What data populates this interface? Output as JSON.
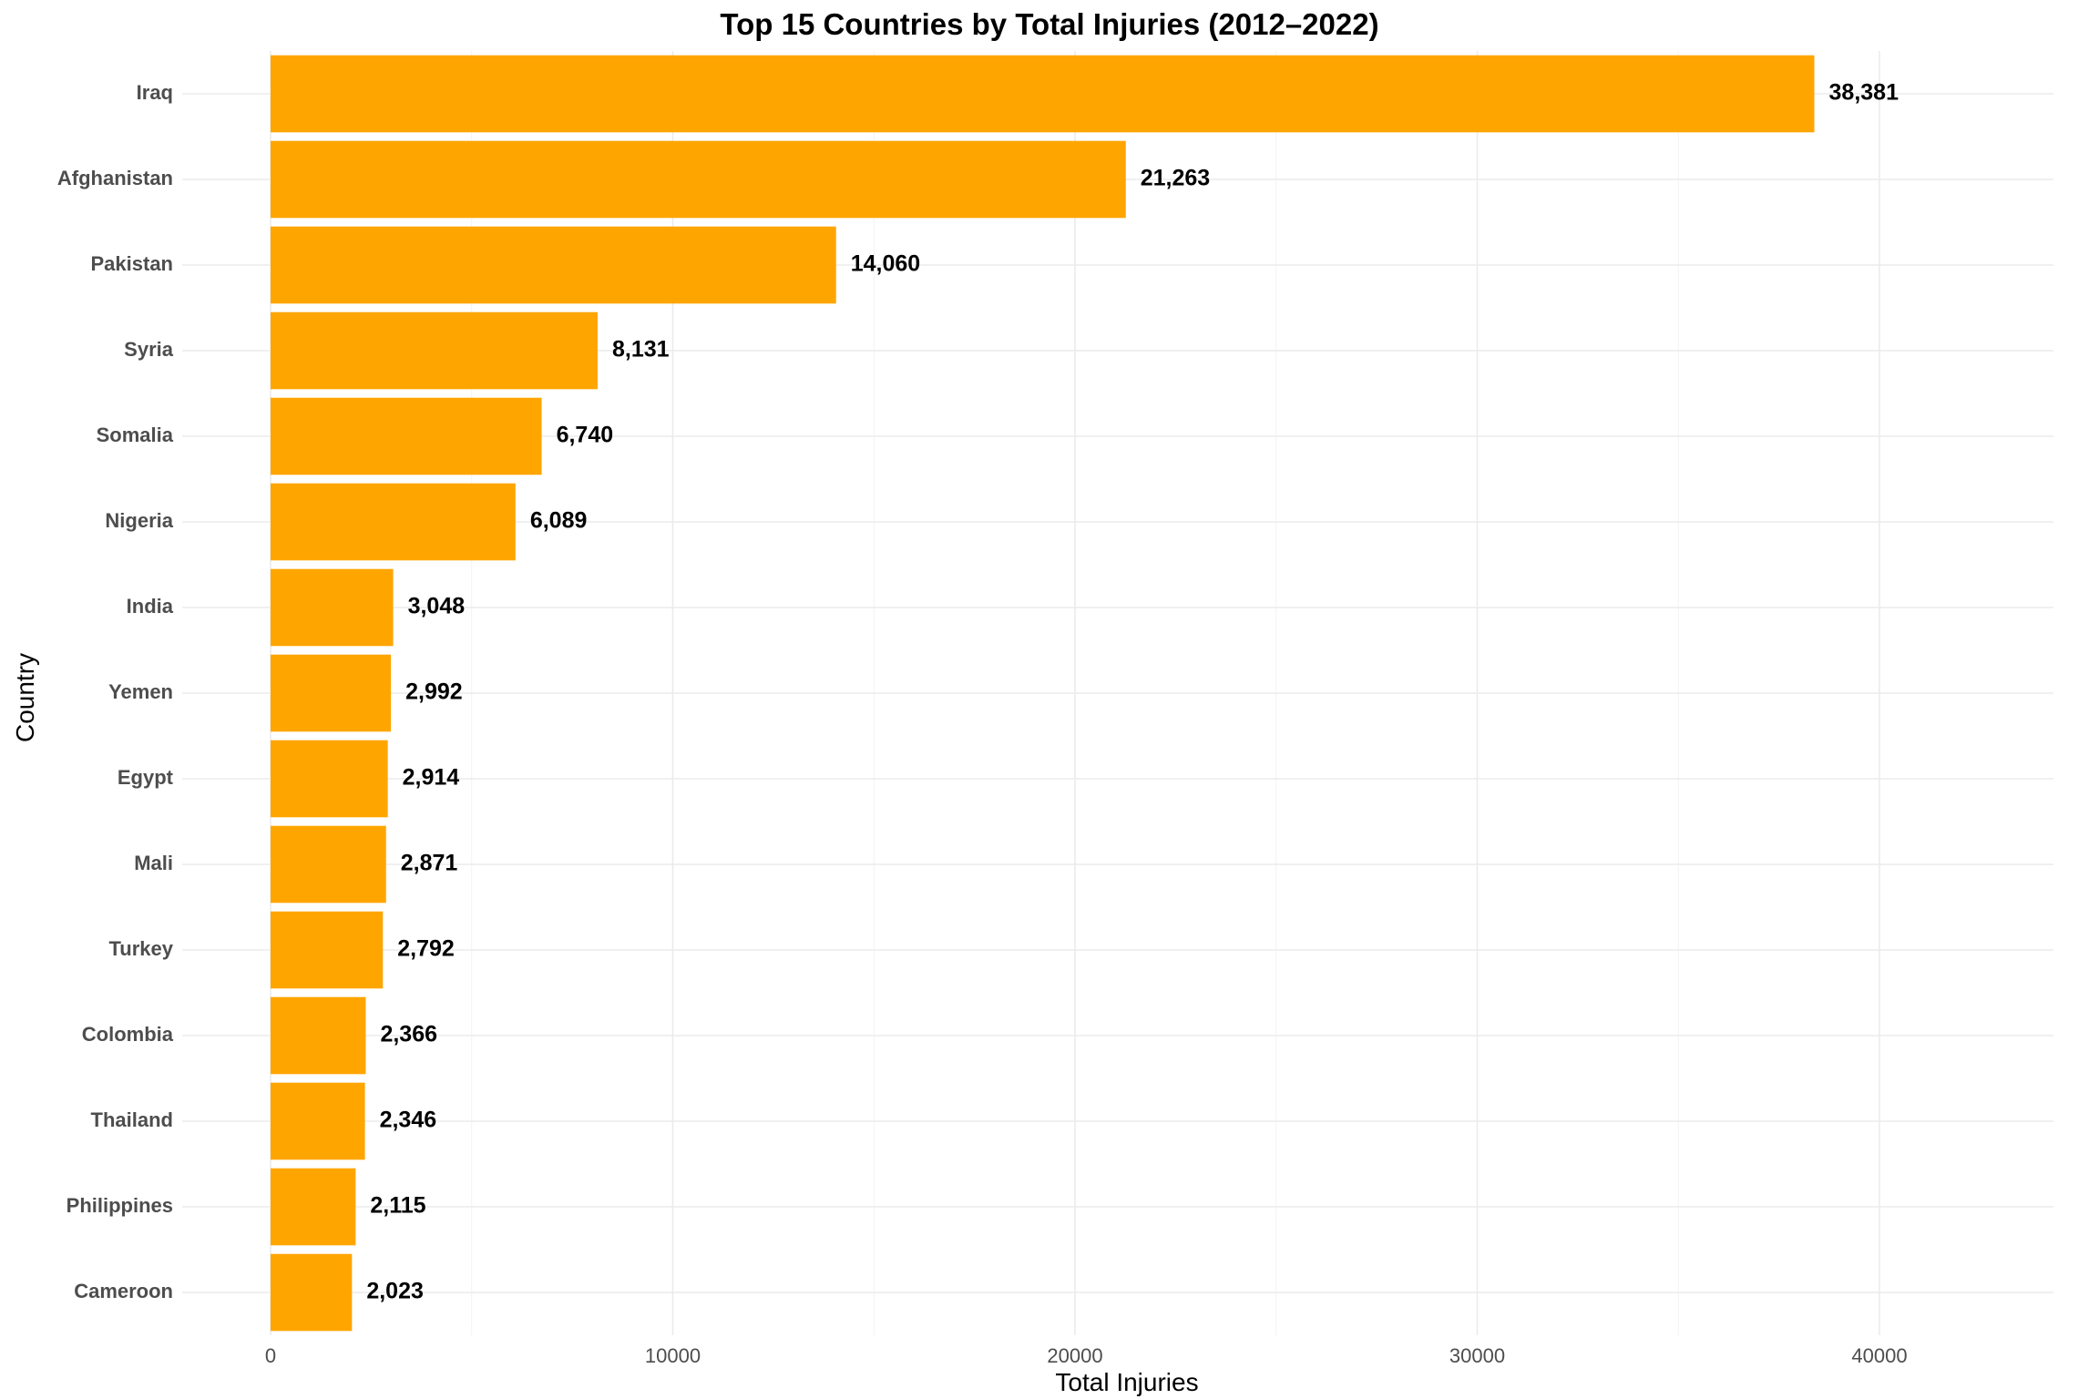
{
  "chart_data": {
    "type": "bar",
    "orientation": "horizontal",
    "title": "Top 15 Countries by Total Injuries (2012–2022)",
    "xlabel": "Total Injuries",
    "ylabel": "Country",
    "categories": [
      "Iraq",
      "Afghanistan",
      "Pakistan",
      "Syria",
      "Somalia",
      "Nigeria",
      "India",
      "Yemen",
      "Egypt",
      "Mali",
      "Turkey",
      "Colombia",
      "Thailand",
      "Philippines",
      "Cameroon"
    ],
    "values": [
      38381,
      21263,
      14060,
      8131,
      6740,
      6089,
      3048,
      2992,
      2914,
      2871,
      2792,
      2366,
      2346,
      2115,
      2023
    ],
    "data_labels": [
      "38,381",
      "21,263",
      "14,060",
      "8,131",
      "6,740",
      "6,089",
      "3,048",
      "2,992",
      "2,914",
      "2,871",
      "2,792",
      "2,366",
      "2,346",
      "2,115",
      "2,023"
    ],
    "xticks": [
      0,
      10000,
      20000,
      30000,
      40000
    ],
    "xtick_labels": [
      "0",
      "10000",
      "20000",
      "30000",
      "40000"
    ],
    "xlim": [
      0,
      44300
    ],
    "bar_color": "#FFA500",
    "grid": true,
    "legend": "none"
  }
}
